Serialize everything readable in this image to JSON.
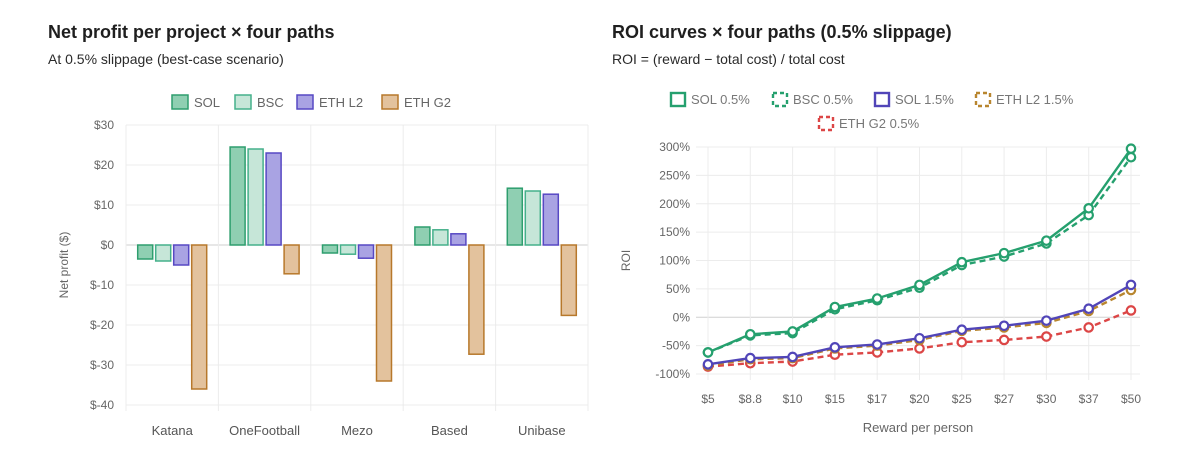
{
  "chart_data": [
    {
      "type": "bar",
      "title": "Net profit per project × four paths",
      "subtitle": "At 0.5% slippage (best-case scenario)",
      "xlabel": "",
      "ylabel": "Net profit ($)",
      "ylim": [
        -40,
        30
      ],
      "yticks": [
        "$-40",
        "$-30",
        "$-20",
        "$-10",
        "$0",
        "$10",
        "$20",
        "$30"
      ],
      "categories": [
        "Katana",
        "OneFootball",
        "Mezo",
        "Based",
        "Unibase"
      ],
      "legend_position": "top",
      "grid": true,
      "series": [
        {
          "name": "SOL",
          "color": "#2e9e6e",
          "fill": "#8fcfb2",
          "values": [
            -3.5,
            24.5,
            -2,
            4.5,
            14.2
          ]
        },
        {
          "name": "BSC",
          "color": "#45b08b",
          "fill": "#c6e6d8",
          "values": [
            -4,
            24,
            -2.3,
            3.8,
            13.5
          ]
        },
        {
          "name": "ETH L2",
          "color": "#5748c4",
          "fill": "#a9a3e3",
          "values": [
            -5,
            23,
            -3.3,
            2.8,
            12.7
          ]
        },
        {
          "name": "ETH G2",
          "color": "#b7782b",
          "fill": "#e3c29d",
          "values": [
            -36,
            -7.2,
            -34,
            -27.3,
            -17.6
          ]
        }
      ]
    },
    {
      "type": "line",
      "title": "ROI curves × four paths (0.5% slippage)",
      "subtitle": "ROI = (reward − total cost) / total cost",
      "xlabel": "Reward per person",
      "ylabel": "ROI",
      "ylim": [
        -100,
        300
      ],
      "yticks": [
        "-100%",
        "-50%",
        "0%",
        "50%",
        "100%",
        "150%",
        "200%",
        "250%",
        "300%"
      ],
      "categories": [
        "$5",
        "$8.8",
        "$10",
        "$15",
        "$17",
        "$20",
        "$25",
        "$27",
        "$30",
        "$37",
        "$50"
      ],
      "legend_position": "top",
      "grid": true,
      "series": [
        {
          "name": "SOL 0.5%",
          "color": "#25a06e",
          "dashed": false,
          "values": [
            -62,
            -30,
            -25,
            18,
            33,
            57,
            97,
            113,
            135,
            192,
            297
          ]
        },
        {
          "name": "BSC 0.5%",
          "color": "#25a06e",
          "dashed": true,
          "values": [
            -62,
            -32,
            -28,
            14,
            30,
            52,
            92,
            107,
            130,
            180,
            282
          ]
        },
        {
          "name": "SOL 1.5%",
          "color": "#5145b8",
          "dashed": false,
          "values": [
            -83,
            -72,
            -70,
            -53,
            -48,
            -37,
            -22,
            -15,
            -6,
            15,
            57
          ]
        },
        {
          "name": "ETH L2 1.5%",
          "color": "#b8862f",
          "dashed": true,
          "values": [
            -85,
            -74,
            -72,
            -55,
            -50,
            -40,
            -24,
            -18,
            -10,
            11,
            48
          ]
        },
        {
          "name": "ETH G2 0.5%",
          "color": "#dc4646",
          "dashed": true,
          "values": [
            -87,
            -81,
            -78,
            -66,
            -62,
            -55,
            -44,
            -40,
            -34,
            -18,
            12
          ]
        }
      ]
    }
  ]
}
